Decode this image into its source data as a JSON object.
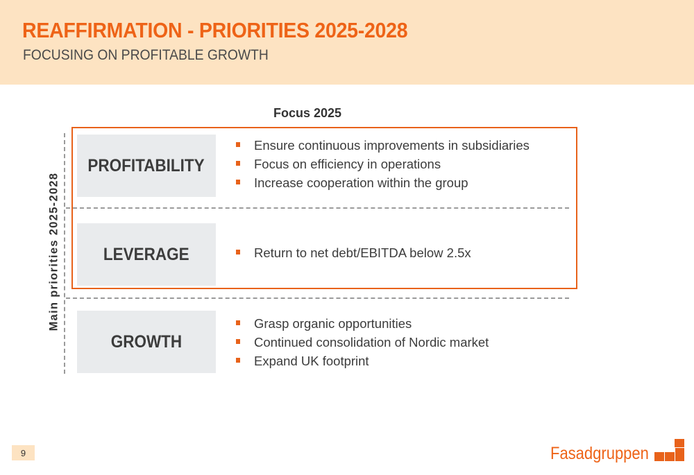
{
  "header": {
    "title": "REAFFIRMATION - PRIORITIES 2025-2028",
    "subtitle": "FOCUSING ON PROFITABLE GROWTH"
  },
  "focus": {
    "label": "Focus 2025"
  },
  "side_label": "Main priorities 2025-2028",
  "priorities": [
    {
      "name": "PROFITABILITY",
      "bullets": [
        "Ensure continuous improvements in subsidiaries",
        "Focus on efficiency in operations",
        "Increase cooperation within the group"
      ]
    },
    {
      "name": "LEVERAGE",
      "bullets": [
        "Return to net debt/EBITDA below 2.5x"
      ]
    },
    {
      "name": "GROWTH",
      "bullets": [
        "Grasp organic opportunities",
        "Continued consolidation of Nordic market",
        "Expand UK footprint"
      ]
    }
  ],
  "footer": {
    "page_number": "9",
    "logo_text": "Fasadgruppen"
  },
  "colors": {
    "accent": "#ee6317",
    "header_bg": "#fde3c2",
    "box_bg": "#e9ebed",
    "divider": "#9a9a9a"
  }
}
